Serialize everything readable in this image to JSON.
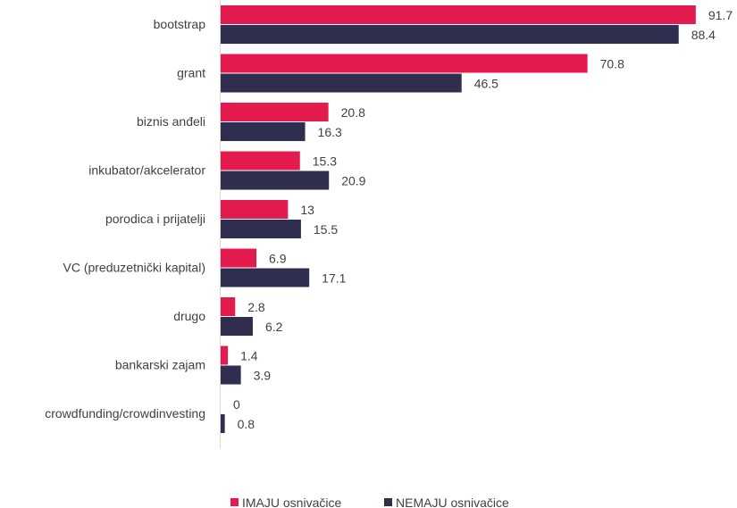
{
  "chart_data": {
    "type": "bar",
    "orientation": "horizontal",
    "title": "",
    "xlabel": "",
    "ylabel": "",
    "xlim": [
      0,
      100
    ],
    "grid": false,
    "legend_position": "bottom",
    "categories": [
      "bootstrap",
      "grant",
      "biznis anđeli",
      "inkubator/akcelerator",
      "porodica i prijatelji",
      "VC (preduzetnički kapital)",
      "drugo",
      "bankarski zajam",
      "crowdfunding/crowdinvesting"
    ],
    "series": [
      {
        "name": "IMAJU osnivačice",
        "color": "#e31b4f",
        "values": [
          91.7,
          70.8,
          20.8,
          15.3,
          13,
          6.9,
          2.8,
          1.4,
          0
        ],
        "value_labels": [
          "91.7",
          "70.8",
          "20.8",
          "15.3",
          "13",
          "6.9",
          "2.8",
          "1.4",
          "0"
        ]
      },
      {
        "name": "NEMAJU osnivačice",
        "color": "#2f2e4f",
        "values": [
          88.4,
          46.5,
          16.3,
          20.9,
          15.5,
          17.1,
          6.2,
          3.9,
          0.8
        ],
        "value_labels": [
          "88.4",
          "46.5",
          "16.3",
          "20.9",
          "15.5",
          "17.1",
          "6.2",
          "3.9",
          "0.8"
        ]
      }
    ]
  }
}
